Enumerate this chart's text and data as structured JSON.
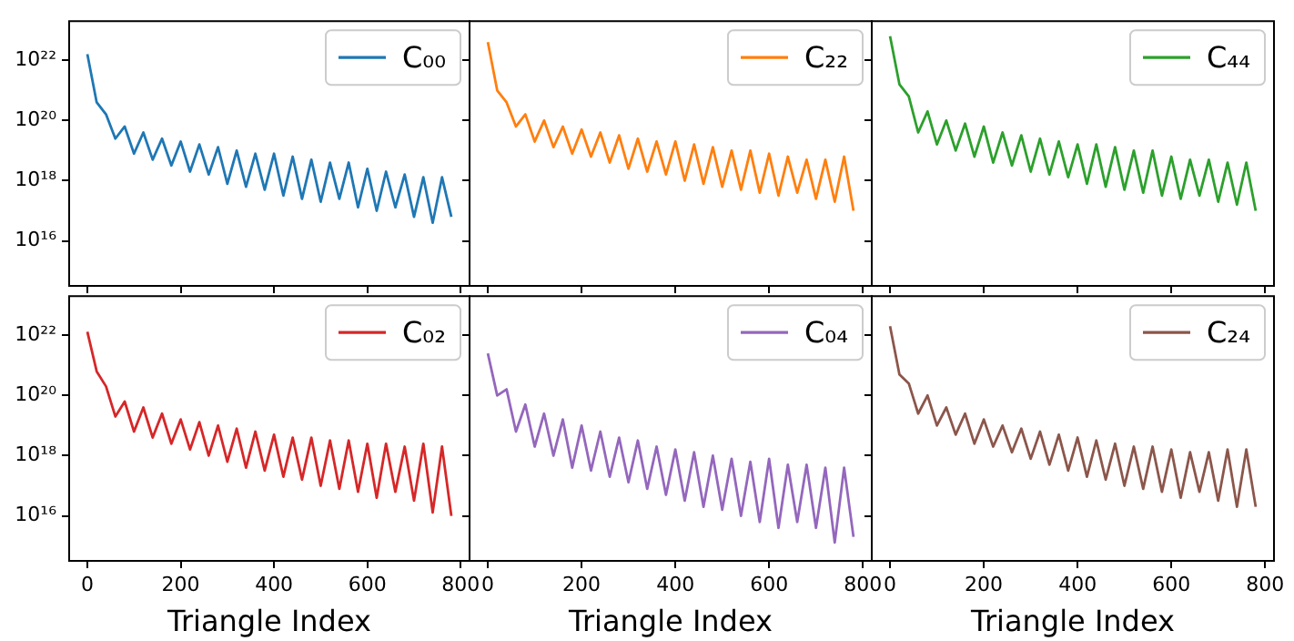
{
  "chart_data": [
    {
      "type": "line",
      "x": [
        0,
        20,
        40,
        60,
        80,
        100,
        120,
        140,
        160,
        180,
        200,
        220,
        240,
        260,
        280,
        300,
        320,
        340,
        360,
        380,
        400,
        420,
        440,
        460,
        480,
        500,
        520,
        540,
        560,
        580,
        600,
        620,
        640,
        660,
        680,
        700,
        720,
        740,
        760,
        780
      ],
      "xlim": [
        -39,
        819
      ],
      "xticks": [
        0,
        200,
        400,
        600,
        800
      ],
      "ylim": [
        320000000000000.0,
        2e+23
      ],
      "yticks": [
        {
          "value": 1e+16,
          "label": "10¹⁶"
        },
        {
          "value": 1e+18,
          "label": "10¹⁸"
        },
        {
          "value": 1e+20,
          "label": "10²⁰"
        },
        {
          "value": 1e+22,
          "label": "10²²"
        }
      ],
      "log": "y",
      "legend": "top right",
      "tick_labels": "y",
      "series": [
        {
          "name": "C₀₀",
          "color": "#1f77b4",
          "values": [
            1.6e+22,
            4e+20,
            1.6e+20,
            2.5e+19,
            6.3e+19,
            7.9e+18,
            4e+19,
            5e+18,
            2.5e+19,
            3.2e+18,
            2e+19,
            2e+18,
            1.6e+19,
            1.6e+18,
            1.3e+19,
            7.9e+17,
            1e+19,
            6.3e+17,
            7.9e+18,
            5e+17,
            7.9e+18,
            3.2e+17,
            6.3e+18,
            2.5e+17,
            5e+18,
            2e+17,
            4e+18,
            2.5e+17,
            4e+18,
            1.3e+17,
            2.5e+18,
            1e+17,
            2e+18,
            1.3e+17,
            1.6e+18,
            6.3e+16,
            1.3e+18,
            4e+16,
            1.3e+18,
            6.3e+16
          ]
        }
      ]
    },
    {
      "type": "line",
      "x": [
        0,
        20,
        40,
        60,
        80,
        100,
        120,
        140,
        160,
        180,
        200,
        220,
        240,
        260,
        280,
        300,
        320,
        340,
        360,
        380,
        400,
        420,
        440,
        460,
        480,
        500,
        520,
        540,
        560,
        580,
        600,
        620,
        640,
        660,
        680,
        700,
        720,
        740,
        760,
        780
      ],
      "xlim": [
        -39,
        819
      ],
      "xticks": [
        0,
        200,
        400,
        600,
        800
      ],
      "ylim": [
        320000000000000.0,
        2e+23
      ],
      "yticks": [
        {
          "value": 1e+16,
          "label": null
        },
        {
          "value": 1e+18,
          "label": null
        },
        {
          "value": 1e+20,
          "label": null
        },
        {
          "value": 1e+22,
          "label": null
        }
      ],
      "log": "y",
      "legend": "top right",
      "tick_labels": false,
      "series": [
        {
          "name": "C₂₂",
          "color": "#ff7f0e",
          "values": [
            4e+22,
            1e+21,
            4e+20,
            6.3e+19,
            1.6e+20,
            2e+19,
            1e+20,
            1.3e+19,
            6.3e+19,
            7.9e+18,
            5e+19,
            6.3e+18,
            4e+19,
            4e+18,
            3.2e+19,
            2.5e+18,
            2.5e+19,
            2e+18,
            2e+19,
            1.6e+18,
            2e+19,
            1e+18,
            1.6e+19,
            7.9e+17,
            1.3e+19,
            6.3e+17,
            1e+19,
            5e+17,
            1e+19,
            4e+17,
            7.9e+18,
            3.2e+17,
            6.3e+18,
            4e+17,
            5e+18,
            2.5e+17,
            5e+18,
            2e+17,
            6.3e+18,
            1e+17
          ]
        }
      ]
    },
    {
      "type": "line",
      "x": [
        0,
        20,
        40,
        60,
        80,
        100,
        120,
        140,
        160,
        180,
        200,
        220,
        240,
        260,
        280,
        300,
        320,
        340,
        360,
        380,
        400,
        420,
        440,
        460,
        480,
        500,
        520,
        540,
        560,
        580,
        600,
        620,
        640,
        660,
        680,
        700,
        720,
        740,
        760,
        780
      ],
      "xlim": [
        -39,
        819
      ],
      "xticks": [
        0,
        200,
        400,
        600,
        800
      ],
      "ylim": [
        320000000000000.0,
        2e+23
      ],
      "yticks": [
        {
          "value": 1e+16,
          "label": null
        },
        {
          "value": 1e+18,
          "label": null
        },
        {
          "value": 1e+20,
          "label": null
        },
        {
          "value": 1e+22,
          "label": null
        }
      ],
      "log": "y",
      "legend": "top right",
      "tick_labels": false,
      "series": [
        {
          "name": "C₄₄",
          "color": "#2ca02c",
          "values": [
            6.3e+22,
            1.6e+21,
            6.3e+20,
            4e+19,
            2e+20,
            1.6e+19,
            1e+20,
            1e+19,
            7.9e+19,
            6.3e+18,
            6.3e+19,
            4e+18,
            4e+19,
            3.2e+18,
            3.2e+19,
            2e+18,
            2.5e+19,
            1.6e+18,
            2e+19,
            1.3e+18,
            1.6e+19,
            7.9e+17,
            1.6e+19,
            6.3e+17,
            1.3e+19,
            5e+17,
            1e+19,
            4e+17,
            1e+19,
            3.2e+17,
            6.3e+18,
            2.5e+17,
            5e+18,
            3.2e+17,
            5e+18,
            2e+17,
            4e+18,
            1.6e+17,
            4e+18,
            1e+17
          ]
        }
      ]
    },
    {
      "type": "line",
      "x": [
        0,
        20,
        40,
        60,
        80,
        100,
        120,
        140,
        160,
        180,
        200,
        220,
        240,
        260,
        280,
        300,
        320,
        340,
        360,
        380,
        400,
        420,
        440,
        460,
        480,
        500,
        520,
        540,
        560,
        580,
        600,
        620,
        640,
        660,
        680,
        700,
        720,
        740,
        760,
        780
      ],
      "xlim": [
        -39,
        819
      ],
      "xticks": [
        0,
        200,
        400,
        600,
        800
      ],
      "ylim": [
        320000000000000.0,
        2e+23
      ],
      "yticks": [
        {
          "value": 1e+16,
          "label": "10¹⁶"
        },
        {
          "value": 1e+18,
          "label": "10¹⁸"
        },
        {
          "value": 1e+20,
          "label": "10²⁰"
        },
        {
          "value": 1e+22,
          "label": "10²²"
        }
      ],
      "log": "y",
      "legend": "top right",
      "xlabel": "Triangle Index",
      "series": [
        {
          "name": "C₀₂",
          "color": "#d62728",
          "values": [
            1.3e+22,
            6.3e+20,
            2e+20,
            2e+19,
            6.3e+19,
            6.3e+18,
            4e+19,
            4e+18,
            2.5e+19,
            2.5e+18,
            1.6e+19,
            1.6e+18,
            1.3e+19,
            1e+18,
            1e+19,
            6.3e+17,
            7.9e+18,
            4e+17,
            6.3e+18,
            3.2e+17,
            5e+18,
            2e+17,
            4e+18,
            1.6e+17,
            4e+18,
            1e+17,
            3.2e+18,
            7.9e+16,
            3.2e+18,
            6.3e+16,
            2.5e+18,
            4e+16,
            2.5e+18,
            6.3e+16,
            2e+18,
            3.2e+16,
            2.5e+18,
            1.3e+16,
            2e+18,
            1e+16
          ]
        }
      ]
    },
    {
      "type": "line",
      "x": [
        0,
        20,
        40,
        60,
        80,
        100,
        120,
        140,
        160,
        180,
        200,
        220,
        240,
        260,
        280,
        300,
        320,
        340,
        360,
        380,
        400,
        420,
        440,
        460,
        480,
        500,
        520,
        540,
        560,
        580,
        600,
        620,
        640,
        660,
        680,
        700,
        720,
        740,
        760,
        780
      ],
      "xlim": [
        -39,
        819
      ],
      "xticks": [
        0,
        200,
        400,
        600,
        800
      ],
      "ylim": [
        320000000000000.0,
        2e+23
      ],
      "yticks": [
        {
          "value": 1e+16,
          "label": null
        },
        {
          "value": 1e+18,
          "label": null
        },
        {
          "value": 1e+20,
          "label": null
        },
        {
          "value": 1e+22,
          "label": null
        }
      ],
      "log": "y",
      "legend": "top right",
      "tick_labels": "x",
      "xlabel": "Triangle Index",
      "series": [
        {
          "name": "C₀₄",
          "color": "#9467bd",
          "values": [
            2.5e+21,
            1e+20,
            1.6e+20,
            6.3e+18,
            5e+19,
            2e+18,
            2.5e+19,
            1e+18,
            1.6e+19,
            4e+17,
            1e+19,
            3.2e+17,
            6.3e+18,
            2e+17,
            4e+18,
            1.3e+17,
            3.2e+18,
            7.9e+16,
            2e+18,
            5e+16,
            1.6e+18,
            3.2e+16,
            1.3e+18,
            2e+16,
            1e+18,
            1.6e+16,
            7.9e+17,
            1e+16,
            6.3e+17,
            6300000000000000.0,
            7.9e+17,
            4000000000000000.0,
            5e+17,
            6300000000000000.0,
            5e+17,
            4000000000000000.0,
            4e+17,
            1300000000000000.0,
            4e+17,
            2000000000000000.0
          ]
        }
      ]
    },
    {
      "type": "line",
      "x": [
        0,
        20,
        40,
        60,
        80,
        100,
        120,
        140,
        160,
        180,
        200,
        220,
        240,
        260,
        280,
        300,
        320,
        340,
        360,
        380,
        400,
        420,
        440,
        460,
        480,
        500,
        520,
        540,
        560,
        580,
        600,
        620,
        640,
        660,
        680,
        700,
        720,
        740,
        760,
        780
      ],
      "xlim": [
        -39,
        819
      ],
      "xticks": [
        0,
        200,
        400,
        600,
        800
      ],
      "ylim": [
        320000000000000.0,
        2e+23
      ],
      "yticks": [
        {
          "value": 1e+16,
          "label": null
        },
        {
          "value": 1e+18,
          "label": null
        },
        {
          "value": 1e+20,
          "label": null
        },
        {
          "value": 1e+22,
          "label": null
        }
      ],
      "log": "y",
      "legend": "top right",
      "tick_labels": "x",
      "xlabel": "Triangle Index",
      "series": [
        {
          "name": "C₂₄",
          "color": "#8c564b",
          "values": [
            2e+22,
            5e+20,
            2.5e+20,
            2.5e+19,
            1e+20,
            1e+19,
            4e+19,
            5e+18,
            2.5e+19,
            2.5e+18,
            1.6e+19,
            2e+18,
            1e+19,
            1.3e+18,
            7.9e+18,
            7.9e+17,
            6.3e+18,
            5e+17,
            5e+18,
            3.2e+17,
            4e+18,
            2e+17,
            3.2e+18,
            1.6e+17,
            2.5e+18,
            1e+17,
            2e+18,
            7.9e+16,
            2e+18,
            6.3e+16,
            1.6e+18,
            4e+16,
            1.3e+18,
            6.3e+16,
            1.3e+18,
            3.2e+16,
            1.6e+18,
            2e+16,
            1.6e+18,
            2e+16
          ]
        }
      ]
    }
  ]
}
